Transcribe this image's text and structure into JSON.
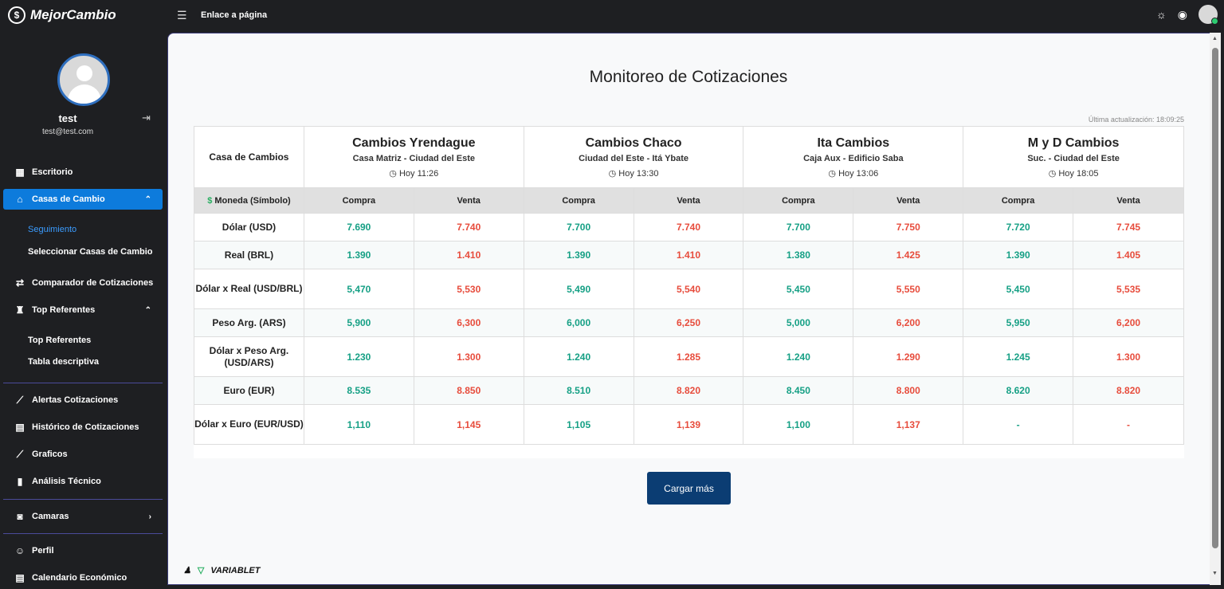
{
  "app": {
    "name": "MejorCambio",
    "top_link": "Enlace a página"
  },
  "sidebar": {
    "user_name": "test",
    "user_email": "test@test.com",
    "items": [
      {
        "label": "Escritorio",
        "icon": "grid-icon"
      },
      {
        "label": "Casas de Cambio",
        "icon": "store-icon"
      },
      {
        "label": "Comparador de Cotizaciones",
        "icon": "compare-icon"
      },
      {
        "label": "Top Referentes",
        "icon": "ranking-icon"
      },
      {
        "label": "Alertas Cotizaciones",
        "icon": "chart-line-icon"
      },
      {
        "label": "Histórico de Cotizaciones",
        "icon": "calendar-icon"
      },
      {
        "label": "Graficos",
        "icon": "chart-line-icon"
      },
      {
        "label": "Análisis Técnico",
        "icon": "bar-chart-icon"
      },
      {
        "label": "Camaras",
        "icon": "camera-icon"
      },
      {
        "label": "Perfil",
        "icon": "user-icon"
      },
      {
        "label": "Calendario Económico",
        "icon": "calendar-icon"
      }
    ],
    "subitems": {
      "casas": [
        "Seguimiento",
        "Seleccionar Casas de Cambio"
      ],
      "top": [
        "Top Referentes",
        "Tabla descriptiva"
      ]
    }
  },
  "main": {
    "title": "Monitoreo de Cotizaciones",
    "updated": "Última actualización: 18:09:25",
    "col_currency": "Casa de Cambios",
    "col_symbol": "Moneda (Símbolo)",
    "col_buy": "Compra",
    "col_sell": "Venta",
    "houses": [
      {
        "name": "Cambios Yrendague",
        "branch": "Casa Matriz - Ciudad del Este",
        "time": "Hoy 11:26"
      },
      {
        "name": "Cambios Chaco",
        "branch": "Ciudad del Este - Itá Ybate",
        "time": "Hoy 13:30"
      },
      {
        "name": "Ita Cambios",
        "branch": "Caja Aux - Edificio Saba",
        "time": "Hoy 13:06"
      },
      {
        "name": "M y D Cambios",
        "branch": "Suc. - Ciudad del Este",
        "time": "Hoy 18:05"
      }
    ],
    "rows": [
      {
        "currency": "Dólar (USD)",
        "values": [
          "7.690",
          "7.740",
          "7.700",
          "7.740",
          "7.700",
          "7.750",
          "7.720",
          "7.745"
        ]
      },
      {
        "currency": "Real (BRL)",
        "values": [
          "1.390",
          "1.410",
          "1.390",
          "1.410",
          "1.380",
          "1.425",
          "1.390",
          "1.405"
        ]
      },
      {
        "currency": "Dólar x Real (USD/BRL)",
        "values": [
          "5,470",
          "5,530",
          "5,490",
          "5,540",
          "5,450",
          "5,550",
          "5,450",
          "5,535"
        ]
      },
      {
        "currency": "Peso Arg. (ARS)",
        "values": [
          "5,900",
          "6,300",
          "6,000",
          "6,250",
          "5,000",
          "6,200",
          "5,950",
          "6,200"
        ]
      },
      {
        "currency": "Dólar x Peso Arg. (USD/ARS)",
        "values": [
          "1.230",
          "1.300",
          "1.240",
          "1.285",
          "1.240",
          "1.290",
          "1.245",
          "1.300"
        ]
      },
      {
        "currency": "Euro (EUR)",
        "values": [
          "8.535",
          "8.850",
          "8.510",
          "8.820",
          "8.450",
          "8.800",
          "8.620",
          "8.820"
        ]
      },
      {
        "currency": "Dólar x Euro (EUR/USD)",
        "values": [
          "1,110",
          "1,145",
          "1,105",
          "1,139",
          "1,100",
          "1,137",
          "-",
          "-"
        ]
      }
    ],
    "load_more": "Cargar más",
    "footer_brand": "VARIABLET"
  }
}
